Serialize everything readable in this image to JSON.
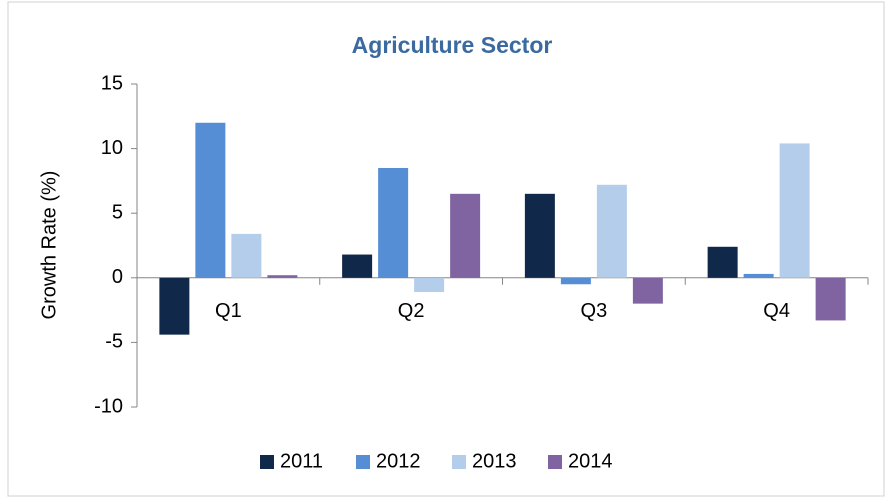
{
  "chart_data": {
    "type": "bar",
    "title": "Agriculture Sector",
    "y_label": "Growth Rate (%)",
    "categories": [
      "Q1",
      "Q2",
      "Q3",
      "Q4"
    ],
    "series": [
      {
        "name": "2011",
        "color": "#10284a",
        "values": [
          -4.4,
          1.8,
          6.5,
          2.4
        ]
      },
      {
        "name": "2012",
        "color": "#558ed5",
        "values": [
          12,
          8.5,
          -0.5,
          0.3
        ]
      },
      {
        "name": "2013",
        "color": "#b3cdeb",
        "values": [
          3.4,
          -1.1,
          7.2,
          10.4
        ]
      },
      {
        "name": "2014",
        "color": "#8064a2",
        "values": [
          0.2,
          6.5,
          -2.0,
          -3.3
        ]
      }
    ],
    "ylim": [
      -10,
      15
    ],
    "yticks": [
      -10,
      -5,
      0,
      5,
      10,
      15
    ],
    "grid": false,
    "legend": "bottom"
  }
}
